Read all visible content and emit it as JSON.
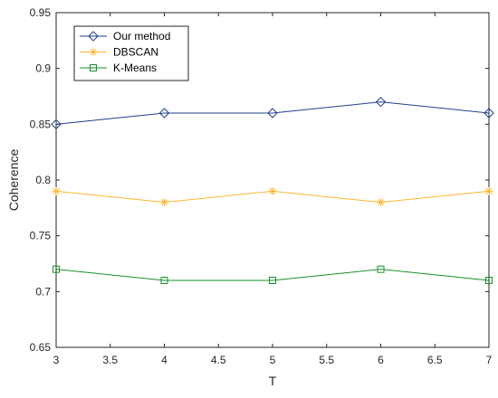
{
  "chart_data": {
    "type": "line",
    "xlabel": "T",
    "ylabel": "Coherence",
    "xlim": [
      3,
      7
    ],
    "ylim": [
      0.65,
      0.95
    ],
    "xticks": [
      "3",
      "3.5",
      "4",
      "4.5",
      "5",
      "5.5",
      "6",
      "6.5",
      "7"
    ],
    "yticks": [
      "0.65",
      "0.7",
      "0.75",
      "0.8",
      "0.85",
      "0.9",
      "0.95"
    ],
    "x": [
      3,
      4,
      5,
      6,
      7
    ],
    "grid": false,
    "legend_position": "top-left",
    "series": [
      {
        "name": "Our method",
        "values": [
          0.85,
          0.86,
          0.86,
          0.87,
          0.86
        ],
        "color": "#1f3f8f",
        "marker": "diamond"
      },
      {
        "name": "DBSCAN",
        "values": [
          0.79,
          0.78,
          0.79,
          0.78,
          0.79
        ],
        "color": "#fdb72b",
        "marker": "asterisk"
      },
      {
        "name": "K-Means",
        "values": [
          0.72,
          0.71,
          0.71,
          0.72,
          0.71
        ],
        "color": "#1a8f2a",
        "marker": "square"
      }
    ]
  }
}
